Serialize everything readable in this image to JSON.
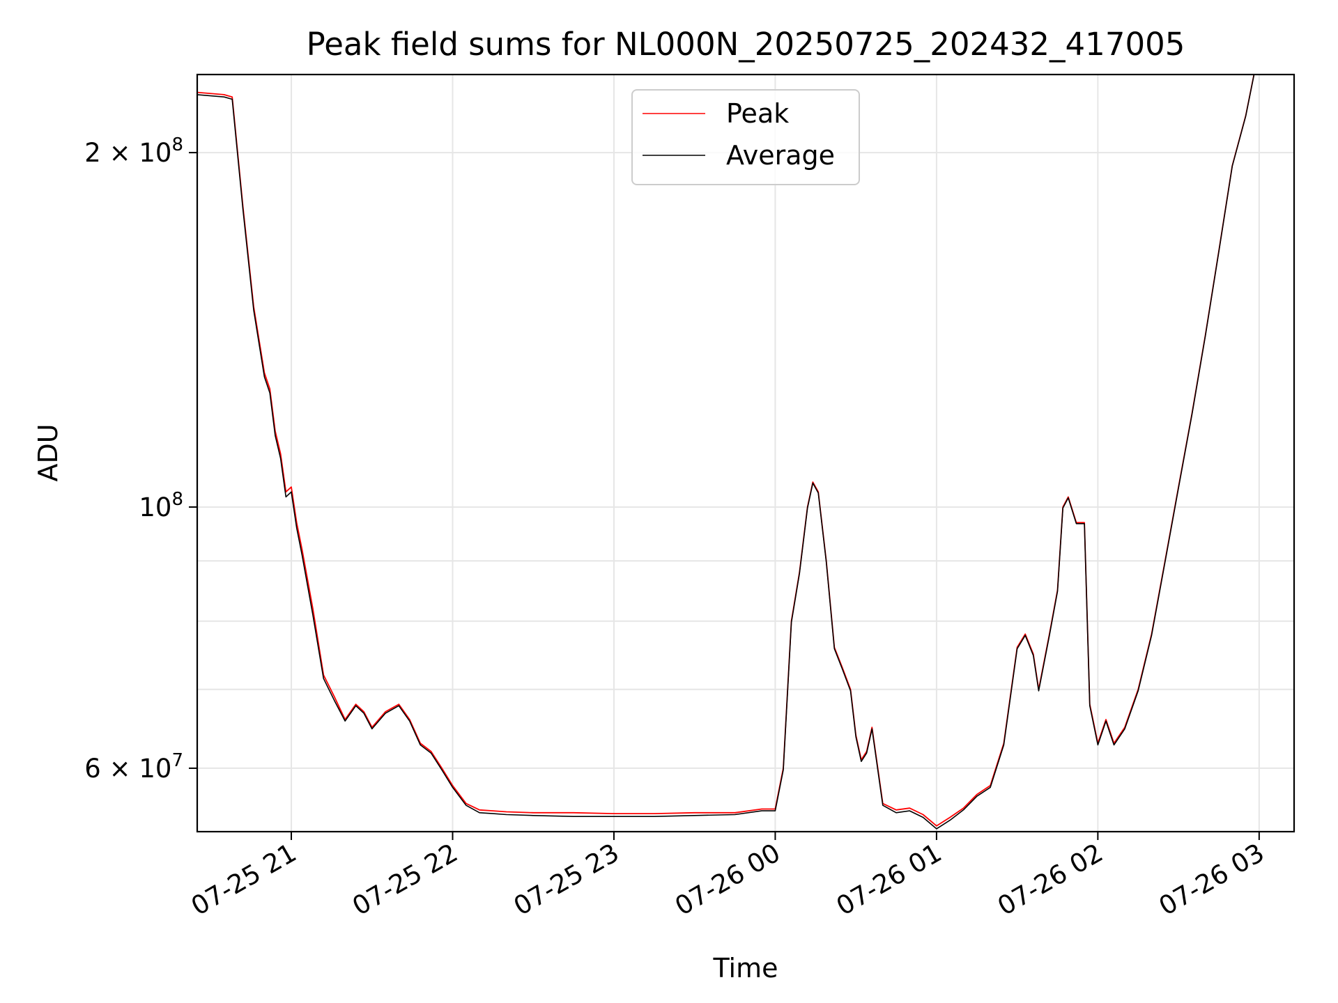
{
  "chart_data": {
    "type": "line",
    "title": "Peak field sums for NL000N_20250725_202432_417005",
    "xlabel": "Time",
    "ylabel": "ADU",
    "yscale": "log",
    "xlim": [
      "07-25 20:25",
      "07-26 03:13"
    ],
    "ylim": [
      53000000,
      233000000
    ],
    "grid": true,
    "legend_position": "top-center",
    "x_ticks": [
      {
        "x": "07-25 21:00",
        "label": "07-25 21"
      },
      {
        "x": "07-25 22:00",
        "label": "07-25 22"
      },
      {
        "x": "07-25 23:00",
        "label": "07-25 23"
      },
      {
        "x": "07-26 00:00",
        "label": "07-26 00"
      },
      {
        "x": "07-26 01:00",
        "label": "07-26 01"
      },
      {
        "x": "07-26 02:00",
        "label": "07-26 02"
      },
      {
        "x": "07-26 03:00",
        "label": "07-26 03"
      }
    ],
    "y_ticks": [
      {
        "value": 60000000,
        "base": "6 × 10",
        "exp": "7"
      },
      {
        "value": 100000000,
        "base": "10",
        "exp": "8"
      },
      {
        "value": 200000000,
        "base": "2 × 10",
        "exp": "8"
      }
    ],
    "y_minor_grid": [
      70000000,
      80000000,
      90000000
    ],
    "series": [
      {
        "name": "Peak",
        "color": "#ff0000",
        "x": [
          "07-25 20:25",
          "07-25 20:35",
          "07-25 20:38",
          "07-25 20:42",
          "07-25 20:46",
          "07-25 20:50",
          "07-25 20:52",
          "07-25 20:54",
          "07-25 20:56",
          "07-25 20:58",
          "07-25 21:00",
          "07-25 21:02",
          "07-25 21:04",
          "07-25 21:08",
          "07-25 21:12",
          "07-25 21:16",
          "07-25 21:20",
          "07-25 21:24",
          "07-25 21:27",
          "07-25 21:30",
          "07-25 21:35",
          "07-25 21:40",
          "07-25 21:44",
          "07-25 21:48",
          "07-25 21:52",
          "07-25 21:56",
          "07-25 22:00",
          "07-25 22:05",
          "07-25 22:10",
          "07-25 22:15",
          "07-25 22:20",
          "07-25 22:30",
          "07-25 22:45",
          "07-25 23:00",
          "07-25 23:15",
          "07-25 23:30",
          "07-25 23:45",
          "07-25 23:55",
          "07-26 00:00",
          "07-26 00:03",
          "07-26 00:06",
          "07-26 00:09",
          "07-26 00:12",
          "07-26 00:14",
          "07-26 00:16",
          "07-26 00:19",
          "07-26 00:22",
          "07-26 00:25",
          "07-26 00:28",
          "07-26 00:30",
          "07-26 00:32",
          "07-26 00:34",
          "07-26 00:36",
          "07-26 00:40",
          "07-26 00:45",
          "07-26 00:50",
          "07-26 00:55",
          "07-26 01:00",
          "07-26 01:05",
          "07-26 01:10",
          "07-26 01:15",
          "07-26 01:20",
          "07-26 01:25",
          "07-26 01:30",
          "07-26 01:33",
          "07-26 01:36",
          "07-26 01:38",
          "07-26 01:42",
          "07-26 01:45",
          "07-26 01:47",
          "07-26 01:49",
          "07-26 01:52",
          "07-26 01:55",
          "07-26 01:57",
          "07-26 02:00",
          "07-26 02:03",
          "07-26 02:06",
          "07-26 02:10",
          "07-26 02:15",
          "07-26 02:20",
          "07-26 02:25",
          "07-26 02:30",
          "07-26 02:35",
          "07-26 02:40",
          "07-26 02:45",
          "07-26 02:50",
          "07-26 02:55",
          "07-26 03:00"
        ],
        "values": [
          225000000,
          224000000,
          223000000,
          180000000,
          148000000,
          130000000,
          126000000,
          116000000,
          111000000,
          103000000,
          104000000,
          97000000,
          92000000,
          82000000,
          72000000,
          69000000,
          66000000,
          68000000,
          67000000,
          65000000,
          67000000,
          68000000,
          66000000,
          63000000,
          62000000,
          60000000,
          58000000,
          56000000,
          55300000,
          55200000,
          55100000,
          55000000,
          55000000,
          54900000,
          54900000,
          55000000,
          55000000,
          55400000,
          55400000,
          60000000,
          80000000,
          88000000,
          100000000,
          105000000,
          103000000,
          90000000,
          76000000,
          73000000,
          70000000,
          64000000,
          61000000,
          62000000,
          65000000,
          56000000,
          55300000,
          55500000,
          54800000,
          53600000,
          54500000,
          55500000,
          57000000,
          58000000,
          63000000,
          76000000,
          78000000,
          75000000,
          70000000,
          78000000,
          85000000,
          100000000,
          102000000,
          97000000,
          97000000,
          68000000,
          63000000,
          66000000,
          63000000,
          65000000,
          70000000,
          78000000,
          90000000,
          104000000,
          120000000,
          140000000,
          165000000,
          195000000,
          215000000,
          245000000
        ]
      },
      {
        "name": "Average",
        "color": "#000000",
        "x": [
          "07-25 20:25",
          "07-25 20:35",
          "07-25 20:38",
          "07-25 20:42",
          "07-25 20:46",
          "07-25 20:50",
          "07-25 20:52",
          "07-25 20:54",
          "07-25 20:56",
          "07-25 20:58",
          "07-25 21:00",
          "07-25 21:02",
          "07-25 21:04",
          "07-25 21:08",
          "07-25 21:12",
          "07-25 21:16",
          "07-25 21:20",
          "07-25 21:24",
          "07-25 21:27",
          "07-25 21:30",
          "07-25 21:35",
          "07-25 21:40",
          "07-25 21:44",
          "07-25 21:48",
          "07-25 21:52",
          "07-25 21:56",
          "07-25 22:00",
          "07-25 22:05",
          "07-25 22:10",
          "07-25 22:15",
          "07-25 22:20",
          "07-25 22:30",
          "07-25 22:45",
          "07-25 23:00",
          "07-25 23:15",
          "07-25 23:30",
          "07-25 23:45",
          "07-25 23:55",
          "07-26 00:00",
          "07-26 00:03",
          "07-26 00:06",
          "07-26 00:09",
          "07-26 00:12",
          "07-26 00:14",
          "07-26 00:16",
          "07-26 00:19",
          "07-26 00:22",
          "07-26 00:25",
          "07-26 00:28",
          "07-26 00:30",
          "07-26 00:32",
          "07-26 00:34",
          "07-26 00:36",
          "07-26 00:40",
          "07-26 00:45",
          "07-26 00:50",
          "07-26 00:55",
          "07-26 01:00",
          "07-26 01:05",
          "07-26 01:10",
          "07-26 01:15",
          "07-26 01:20",
          "07-26 01:25",
          "07-26 01:30",
          "07-26 01:33",
          "07-26 01:36",
          "07-26 01:38",
          "07-26 01:42",
          "07-26 01:45",
          "07-26 01:47",
          "07-26 01:49",
          "07-26 01:52",
          "07-26 01:55",
          "07-26 01:57",
          "07-26 02:00",
          "07-26 02:03",
          "07-26 02:06",
          "07-26 02:10",
          "07-26 02:15",
          "07-26 02:20",
          "07-26 02:25",
          "07-26 02:30",
          "07-26 02:35",
          "07-26 02:40",
          "07-26 02:45",
          "07-26 02:50",
          "07-26 02:55",
          "07-26 03:00"
        ],
        "values": [
          224000000,
          223000000,
          222000000,
          179000000,
          147000000,
          129000000,
          125000000,
          115000000,
          110000000,
          102000000,
          103000000,
          96000000,
          91000000,
          81000000,
          71500000,
          68500000,
          65800000,
          67800000,
          66800000,
          64800000,
          66800000,
          67800000,
          65800000,
          62800000,
          61800000,
          59800000,
          57800000,
          55800000,
          55000000,
          54900000,
          54800000,
          54700000,
          54600000,
          54600000,
          54600000,
          54700000,
          54800000,
          55200000,
          55200000,
          59800000,
          79800000,
          87800000,
          99800000,
          104800000,
          102800000,
          89800000,
          75800000,
          72800000,
          69800000,
          63800000,
          60800000,
          61800000,
          64800000,
          55800000,
          55000000,
          55200000,
          54500000,
          53300000,
          54200000,
          55300000,
          56800000,
          57800000,
          62800000,
          75800000,
          77800000,
          74800000,
          69800000,
          77800000,
          84800000,
          99800000,
          101800000,
          96800000,
          96800000,
          67800000,
          62800000,
          65800000,
          62800000,
          64800000,
          69800000,
          77800000,
          89800000,
          103800000,
          119800000,
          139800000,
          164800000,
          194800000,
          214800000,
          244800000
        ]
      }
    ]
  }
}
